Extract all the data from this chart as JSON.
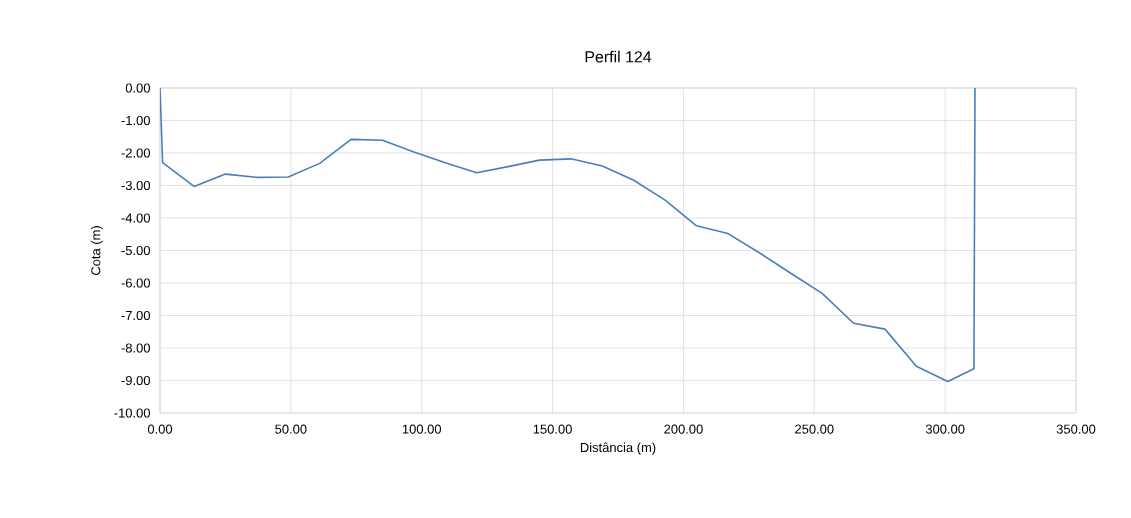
{
  "chart_data": {
    "type": "line",
    "title": "Perfil 124",
    "xlabel": "Distância (m)",
    "ylabel": "Cota (m)",
    "x": [
      0,
      1,
      13,
      25,
      37,
      49,
      61,
      73,
      85,
      97,
      109,
      121,
      133,
      145,
      157,
      169,
      181,
      193,
      205,
      217,
      229,
      241,
      253,
      265,
      277,
      289,
      301,
      311,
      311.4
    ],
    "series": [
      {
        "color": "#4a7ebb",
        "values": [
          0,
          -2.3,
          -3.03,
          -2.65,
          -2.75,
          -2.74,
          -2.32,
          -1.58,
          -1.61,
          -1.97,
          -2.3,
          -2.61,
          -2.42,
          -2.22,
          -2.18,
          -2.4,
          -2.84,
          -3.45,
          -4.24,
          -4.48,
          -5.07,
          -5.7,
          -6.32,
          -7.24,
          -7.42,
          -8.56,
          -9.03,
          -8.64,
          0
        ]
      }
    ],
    "xlim": [
      0,
      350
    ],
    "ylim": [
      -10,
      0
    ],
    "xticks": [
      {
        "value": 0,
        "label": "0.00"
      },
      {
        "value": 50,
        "label": "50.00"
      },
      {
        "value": 100,
        "label": "100.00"
      },
      {
        "value": 150,
        "label": "150.00"
      },
      {
        "value": 200,
        "label": "200.00"
      },
      {
        "value": 250,
        "label": "250.00"
      },
      {
        "value": 300,
        "label": "300.00"
      },
      {
        "value": 350,
        "label": "350.00"
      }
    ],
    "yticks": [
      {
        "value": 0,
        "label": "0.00"
      },
      {
        "value": -1,
        "label": "-1.00"
      },
      {
        "value": -2,
        "label": "-2.00"
      },
      {
        "value": -3,
        "label": "-3.00"
      },
      {
        "value": -4,
        "label": "-4.00"
      },
      {
        "value": -5,
        "label": "-5.00"
      },
      {
        "value": -6,
        "label": "-6.00"
      },
      {
        "value": -7,
        "label": "-7.00"
      },
      {
        "value": -8,
        "label": "-8.00"
      },
      {
        "value": -9,
        "label": "-9.00"
      },
      {
        "value": -10,
        "label": "-10.00"
      }
    ],
    "grid": true,
    "marker": "none",
    "line_style": "solid"
  }
}
